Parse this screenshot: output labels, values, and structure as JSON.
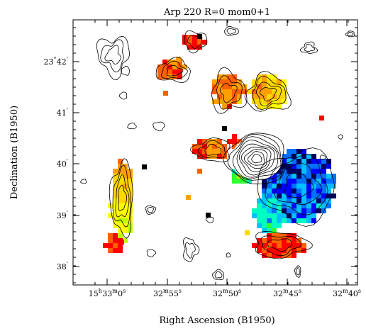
{
  "chart_data": {
    "type": "heatmap",
    "title": "Arp 220 R=0 mom0+1",
    "xlabel": "Right Ascension (B1950)",
    "ylabel": "Declination (B1950)",
    "x_ticks": [
      {
        "h": "15",
        "h_unit": "h",
        "m": "33",
        "m_unit": "m",
        "s": "0",
        "s_unit": "s"
      },
      {
        "m": "32",
        "m_unit": "m",
        "s": "55",
        "s_unit": "s"
      },
      {
        "m": "32",
        "m_unit": "m",
        "s": "50",
        "s_unit": "s"
      },
      {
        "m": "32",
        "m_unit": "m",
        "s": "45",
        "s_unit": "s"
      },
      {
        "m": "32",
        "m_unit": "m",
        "s": "40",
        "s_unit": "s"
      }
    ],
    "y_ticks": [
      {
        "d": "23",
        "d_unit": "°",
        "m": "42",
        "m_unit": "'"
      },
      {
        "m": "41",
        "m_unit": "'"
      },
      {
        "m": "40",
        "m_unit": "'"
      },
      {
        "m": "39",
        "m_unit": "'"
      },
      {
        "m": "38",
        "m_unit": "'"
      }
    ],
    "color_scale": [
      "#ff0000",
      "#ff6000",
      "#ffa000",
      "#ffd800",
      "#ffff00",
      "#c0ff00",
      "#30ff30",
      "#00ffc0",
      "#00c0ff",
      "#0070ff",
      "#0000ff",
      "#000060"
    ],
    "contour_color": "#000000",
    "background": "#ffffff"
  }
}
